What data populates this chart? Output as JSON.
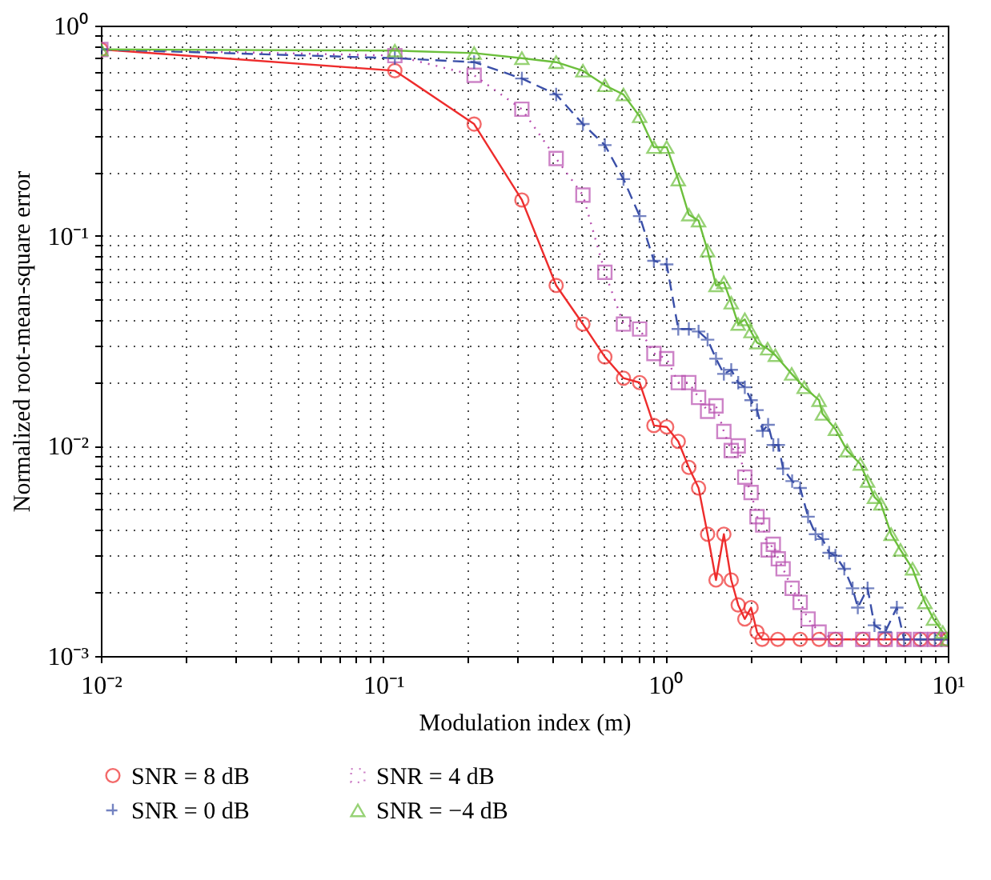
{
  "chart_data": {
    "type": "line",
    "xlabel": "Modulation index (m)",
    "ylabel": "Normalized root-mean-square error",
    "log": "xy",
    "grid": true,
    "legend": "bottom",
    "xlim": [
      0.01,
      10
    ],
    "xticks": [
      {
        "value": 0.01,
        "label": "10⁻²"
      },
      {
        "value": 0.1,
        "label": "10⁻¹"
      },
      {
        "value": 1,
        "label": "10⁰"
      },
      {
        "value": 10,
        "label": "10¹"
      }
    ],
    "ylim": [
      0.001,
      1
    ],
    "yticks": [
      {
        "value": 0.001,
        "label": "10⁻³"
      },
      {
        "value": 0.01,
        "label": "10⁻²"
      },
      {
        "value": 0.1,
        "label": "10⁻¹"
      },
      {
        "value": 1,
        "label": "10⁰"
      }
    ],
    "series": [
      {
        "name": "SNR = 8 dB",
        "color": "#ee2c2c",
        "marker": "circle",
        "line_style": "solid",
        "x": [
          0.01,
          0.11,
          0.21,
          0.31,
          0.41,
          0.51,
          0.61,
          0.71,
          0.81,
          0.91,
          1.01,
          1.11,
          1.21,
          1.31,
          1.41,
          1.51,
          1.61,
          1.71,
          1.81,
          1.91,
          2.01,
          2.11,
          2.2,
          2.5,
          3,
          3.5,
          4,
          5,
          6,
          7,
          8,
          9,
          10
        ],
        "values": [
          0.77,
          0.61,
          0.34,
          0.148,
          0.058,
          0.038,
          0.0265,
          0.021,
          0.02,
          0.0125,
          0.0123,
          0.0105,
          0.0079,
          0.0063,
          0.0038,
          0.0023,
          0.0038,
          0.0023,
          0.00175,
          0.0015,
          0.0017,
          0.0013,
          0.0012,
          0.0012,
          0.0012,
          0.0012,
          0.0012,
          0.0012,
          0.0012,
          0.0012,
          0.0012,
          0.0012,
          0.0012
        ]
      },
      {
        "name": "SNR = 4 dB",
        "color": "#b84fb0",
        "marker": "square",
        "line_style": "dotted",
        "x": [
          0.01,
          0.11,
          0.21,
          0.31,
          0.41,
          0.51,
          0.61,
          0.71,
          0.81,
          0.91,
          1.01,
          1.11,
          1.21,
          1.31,
          1.41,
          1.51,
          1.61,
          1.71,
          1.81,
          1.91,
          2.01,
          2.11,
          2.21,
          2.31,
          2.41,
          2.51,
          2.61,
          2.81,
          3.0,
          3.2,
          3.5,
          4,
          5,
          6,
          7,
          8,
          9,
          10
        ],
        "values": [
          0.77,
          0.72,
          0.58,
          0.4,
          0.233,
          0.156,
          0.067,
          0.038,
          0.036,
          0.0275,
          0.026,
          0.02,
          0.02,
          0.017,
          0.0146,
          0.0155,
          0.0117,
          0.0095,
          0.01,
          0.0071,
          0.006,
          0.0046,
          0.0042,
          0.0032,
          0.0034,
          0.0029,
          0.0026,
          0.0021,
          0.0018,
          0.0015,
          0.0013,
          0.0012,
          0.0012,
          0.0012,
          0.0012,
          0.0012,
          0.0012,
          0.0012
        ]
      },
      {
        "name": "SNR = 0 dB",
        "color": "#3a4fa8",
        "marker": "cross",
        "line_style": "dashed",
        "x": [
          0.01,
          0.11,
          0.21,
          0.31,
          0.41,
          0.51,
          0.61,
          0.71,
          0.81,
          0.91,
          1.01,
          1.11,
          1.21,
          1.31,
          1.41,
          1.51,
          1.61,
          1.71,
          1.81,
          1.91,
          2.01,
          2.11,
          2.21,
          2.31,
          2.41,
          2.51,
          2.61,
          2.81,
          3.0,
          3.2,
          3.4,
          3.6,
          3.8,
          4.0,
          4.3,
          4.6,
          4.8,
          5.2,
          5.5,
          6,
          6.6,
          7,
          8,
          9,
          10
        ],
        "values": [
          0.77,
          0.7,
          0.67,
          0.56,
          0.47,
          0.34,
          0.27,
          0.186,
          0.124,
          0.076,
          0.073,
          0.036,
          0.036,
          0.035,
          0.032,
          0.026,
          0.022,
          0.023,
          0.02,
          0.019,
          0.0165,
          0.0148,
          0.0118,
          0.0126,
          0.0101,
          0.0101,
          0.0078,
          0.0068,
          0.0063,
          0.0046,
          0.0038,
          0.0036,
          0.0031,
          0.003,
          0.0026,
          0.0021,
          0.0017,
          0.0021,
          0.0014,
          0.0013,
          0.0017,
          0.0012,
          0.0012,
          0.0012,
          0.0012
        ]
      },
      {
        "name": "SNR = −4 dB",
        "color": "#6cbf3c",
        "marker": "triangle",
        "line_style": "solid",
        "x": [
          0.01,
          0.11,
          0.21,
          0.31,
          0.41,
          0.51,
          0.61,
          0.71,
          0.81,
          0.91,
          1.01,
          1.11,
          1.21,
          1.31,
          1.41,
          1.51,
          1.61,
          1.71,
          1.81,
          1.91,
          2.01,
          2.11,
          2.3,
          2.45,
          2.8,
          3.1,
          3.5,
          3.6,
          4.0,
          4.4,
          4.9,
          5.2,
          5.5,
          5.8,
          6.3,
          6.8,
          7.5,
          8.3,
          8.9,
          9.6,
          10
        ],
        "values": [
          0.77,
          0.76,
          0.74,
          0.7,
          0.67,
          0.61,
          0.52,
          0.47,
          0.37,
          0.264,
          0.264,
          0.185,
          0.126,
          0.118,
          0.085,
          0.058,
          0.06,
          0.048,
          0.038,
          0.04,
          0.035,
          0.031,
          0.029,
          0.027,
          0.022,
          0.019,
          0.0165,
          0.0142,
          0.012,
          0.0095,
          0.0082,
          0.0068,
          0.0057,
          0.0053,
          0.0038,
          0.0032,
          0.0026,
          0.0018,
          0.0015,
          0.0013,
          0.0012
        ]
      }
    ]
  }
}
